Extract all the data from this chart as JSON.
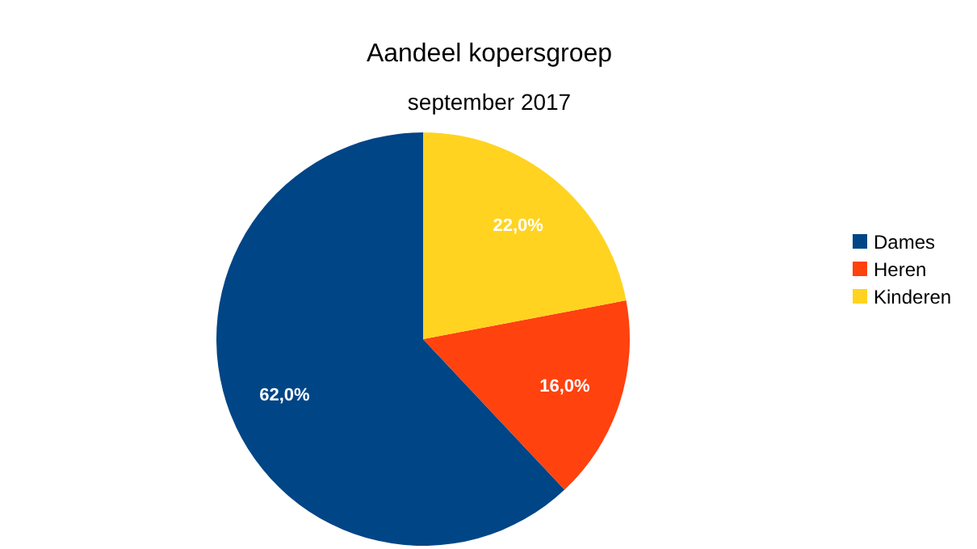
{
  "chart_data": {
    "type": "pie",
    "title": "Aandeel kopersgroep",
    "subtitle": "september 2017",
    "categories": [
      "Dames",
      "Heren",
      "Kinderen"
    ],
    "values": [
      62,
      16,
      22
    ],
    "colors": [
      "#004586",
      "#ff420e",
      "#ffd320"
    ],
    "value_labels": [
      "62,0%",
      "16,0%",
      "22,0%"
    ],
    "legend": "right"
  }
}
